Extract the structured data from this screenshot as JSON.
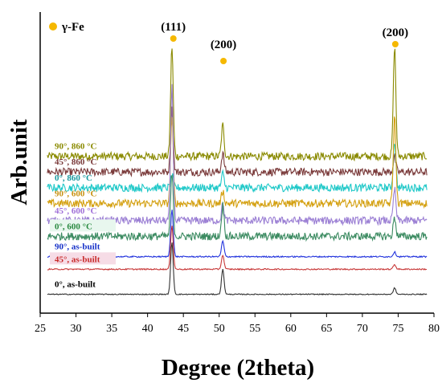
{
  "chart_data": {
    "type": "line",
    "xlabel": "Degree (2theta)",
    "ylabel": "Arb.unit",
    "xlim": [
      25,
      80
    ],
    "x_ticks": [
      25,
      30,
      35,
      40,
      45,
      50,
      55,
      60,
      65,
      70,
      75,
      80
    ],
    "grid": false,
    "legend": {
      "label": "γ-Fe",
      "marker_color": "#f5b800",
      "position": "top-left"
    },
    "peak_labels": [
      {
        "text": "(111)",
        "x": 43.6
      },
      {
        "text": "(200)",
        "x": 50.6
      },
      {
        "text": "(200)",
        "x": 74.6
      }
    ],
    "peak_markers": [
      43.6,
      50.6,
      74.6
    ],
    "series": [
      {
        "name": "90°, 860 °C",
        "color": "#8a8a00",
        "label_color": "#8a8a00",
        "label_bg": "",
        "baseline": 10,
        "noise": 0.5,
        "peaks": [
          [
            43.4,
            7.0
          ],
          [
            50.5,
            2.0
          ],
          [
            74.5,
            7.0
          ]
        ]
      },
      {
        "name": "45°, 860 °C",
        "color": "#7a3a3a",
        "label_color": "#7a3a3a",
        "label_bg": "",
        "baseline": 9,
        "noise": 0.5,
        "peaks": [
          [
            43.4,
            4.0
          ],
          [
            50.5,
            1.2
          ],
          [
            74.5,
            1.0
          ]
        ]
      },
      {
        "name": "0°, 860 °C",
        "color": "#1ec8c8",
        "label_color": "#1a9aa0",
        "label_bg": "",
        "baseline": 8,
        "noise": 0.5,
        "peaks": [
          [
            43.4,
            0.8
          ],
          [
            50.5,
            0.9
          ],
          [
            74.5,
            3.0
          ]
        ]
      },
      {
        "name": "90°, 600 °C",
        "color": "#d4a010",
        "label_color": "#c89010",
        "label_bg": "",
        "baseline": 7,
        "noise": 0.5,
        "peaks": [
          [
            43.4,
            5.5
          ],
          [
            50.5,
            0.8
          ],
          [
            74.5,
            5.5
          ]
        ]
      },
      {
        "name": "45°, 600 °C",
        "color": "#9b7fd4",
        "label_color": "#a070d8",
        "label_bg": "",
        "baseline": 5.9,
        "noise": 0.5,
        "peaks": [
          [
            43.4,
            8.5
          ],
          [
            50.5,
            1.0
          ],
          [
            74.5,
            2.0
          ]
        ]
      },
      {
        "name": "0°, 600 °C",
        "color": "#3a8a60",
        "label_color": "#2a8a40",
        "label_bg": "#e8f7ee",
        "baseline": 4.9,
        "noise": 0.5,
        "peaks": [
          [
            43.4,
            4.0
          ],
          [
            50.5,
            2.0
          ],
          [
            74.5,
            1.2
          ]
        ]
      },
      {
        "name": "90°, as-built",
        "color": "#2233dd",
        "label_color": "#1530c8",
        "label_bg": "",
        "baseline": 3.6,
        "noise": 0.08,
        "peaks": [
          [
            43.4,
            3.0
          ],
          [
            50.5,
            1.0
          ],
          [
            74.5,
            0.3
          ]
        ]
      },
      {
        "name": "45°, as-built",
        "color": "#c83a3a",
        "label_color": "#c82a2a",
        "label_bg": "#f6dce6",
        "baseline": 2.8,
        "noise": 0.08,
        "peaks": [
          [
            43.4,
            2.8
          ],
          [
            50.5,
            0.9
          ],
          [
            74.5,
            0.3
          ]
        ]
      },
      {
        "name": "0°, as-built",
        "color": "#333333",
        "label_color": "#000000",
        "label_bg": "",
        "baseline": 1.2,
        "noise": 0.06,
        "peaks": [
          [
            43.4,
            3.3
          ],
          [
            50.5,
            1.6
          ],
          [
            74.5,
            0.4
          ]
        ]
      }
    ]
  }
}
